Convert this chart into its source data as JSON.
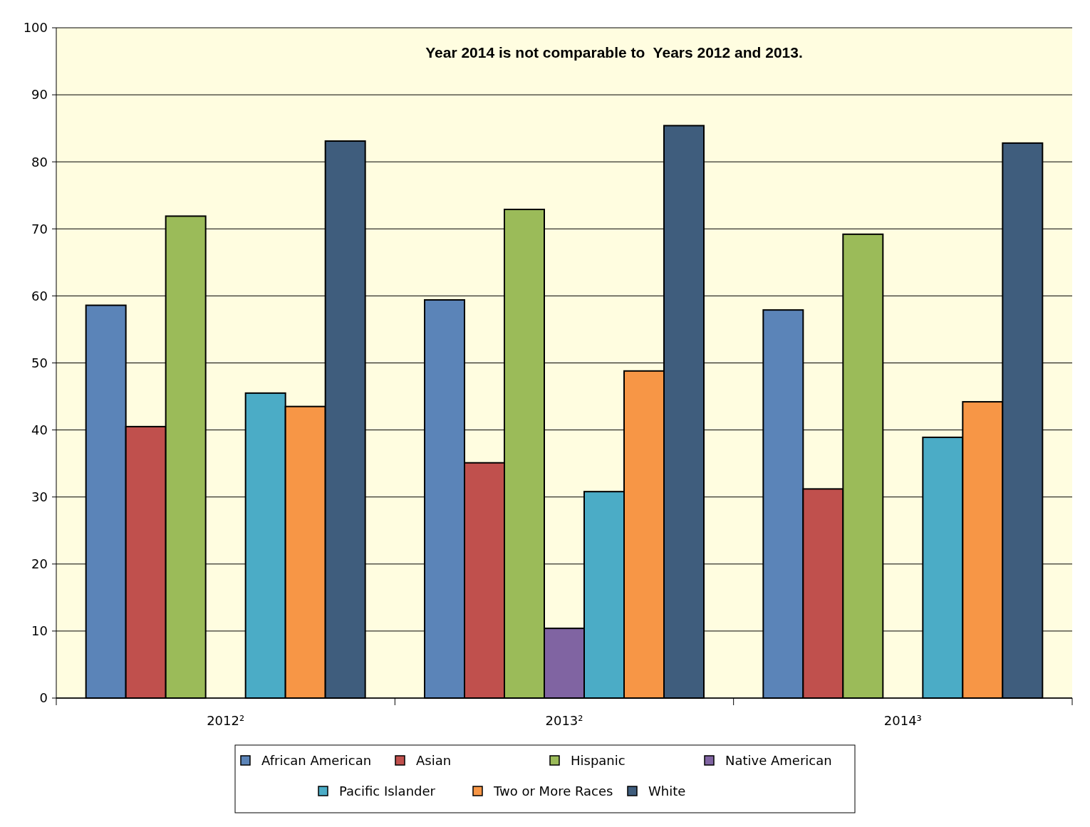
{
  "chart_data": {
    "type": "bar",
    "title": "Year 2014 is not comparable to  Years 2012 and 2013.",
    "categories": [
      "2012²",
      "2013²",
      "2014³"
    ],
    "series": [
      {
        "name": "African American",
        "color": "#5b84b8",
        "values": [
          58.6,
          59.4,
          57.9
        ]
      },
      {
        "name": "Asian",
        "color": "#c0504d",
        "values": [
          40.5,
          35.1,
          31.2
        ]
      },
      {
        "name": "Hispanic",
        "color": "#9bbb59",
        "values": [
          71.9,
          72.9,
          69.2
        ]
      },
      {
        "name": "Native American",
        "color": "#8064a2",
        "values": [
          null,
          10.4,
          null
        ]
      },
      {
        "name": "Pacific Islander",
        "color": "#4bacc6",
        "values": [
          45.5,
          30.8,
          38.9
        ]
      },
      {
        "name": "Two or More Races",
        "color": "#f79646",
        "values": [
          43.5,
          48.8,
          44.2
        ]
      },
      {
        "name": "White",
        "color": "#3f5d7d",
        "values": [
          83.1,
          85.4,
          82.8
        ]
      }
    ],
    "ylim": [
      0,
      100
    ],
    "yticks": [
      0,
      10,
      20,
      30,
      40,
      50,
      60,
      70,
      80,
      90,
      100
    ],
    "grid": "y",
    "legend": "bottom"
  }
}
